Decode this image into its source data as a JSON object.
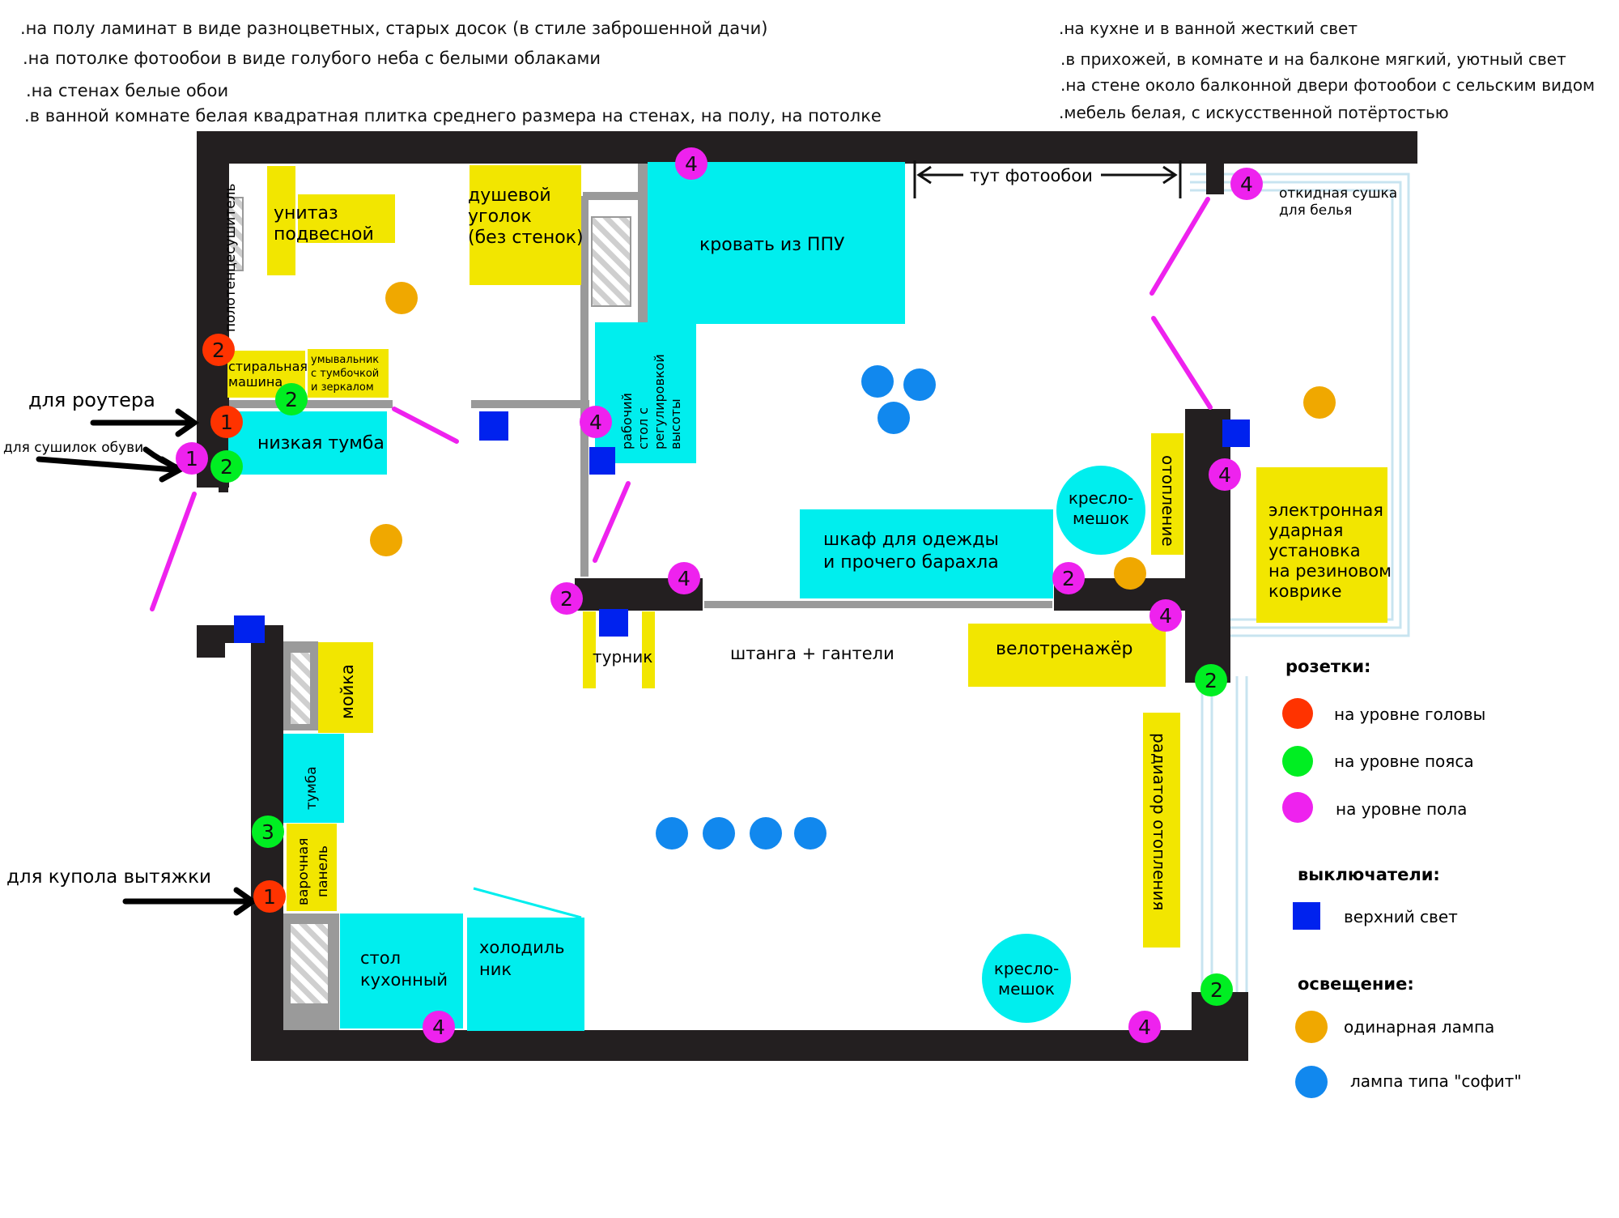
{
  "notes_left": [
    ".на полу ламинат в виде разноцветных, старых досок (в стиле заброшенной дачи)",
    ".на потолке фотообои в виде голубого неба с белыми облаками",
    ".на стенах белые обои",
    ".в ванной комнате белая квадратная  плитка среднего размера на стенах, на полу, на потолке"
  ],
  "notes_right": [
    ".на кухне и в ванной жесткий свет",
    ".в прихожей, в комнате и на балконе мягкий, уютный свет",
    ".на стене около балконной двери фотообои с сельским видом",
    ".мебель белая, с искусственной потёртостью"
  ],
  "colors": {
    "wall": "#231f20",
    "partition": "#9a9a9a",
    "yellow_furniture": "#f2e600",
    "cyan_furniture": "#00eeee",
    "socket_head": "#ff3300",
    "socket_waist": "#00ee22",
    "socket_floor": "#ee22ee",
    "switch": "#0022ee",
    "lamp_single": "#f0a800",
    "lamp_spot": "#1188ee",
    "door": "#ee22ee",
    "window": "#c8e4f0"
  },
  "items": {
    "polotencesushitel": "полотенцесушитель",
    "unitaz": [
      "унитаз",
      "подвесной"
    ],
    "dush": [
      "душевой",
      "уголок",
      "(без стенок)"
    ],
    "krovat": "кровать из ППУ",
    "tut_fotooboi": "тут фотообои",
    "sushka": [
      "откидная сушка",
      "для белья"
    ],
    "stiralnaya": [
      "стиральная",
      "машина"
    ],
    "umyvalnik": [
      "умывальник",
      "с тумбочкой",
      "и зеркалом"
    ],
    "nizkaya_tumba": "низкая тумба",
    "rabochiy_stol": [
      "рабочий",
      "стол с",
      "регулировкой",
      "высоты"
    ],
    "otoplenie": "отопление",
    "kreslo_1": [
      "кресло-",
      "мешок"
    ],
    "shkaf": [
      "шкаф для одежды",
      "и прочего барахла"
    ],
    "udarnaya": [
      "электронная",
      "ударная",
      "установка",
      "на резиновом",
      "коврике"
    ],
    "turnik": "турник",
    "shtanga": "штанга + гантели",
    "velotrenazher": "велотренажёр",
    "moyka": "мойка",
    "tumba": "тумба",
    "varochnaya": [
      "варочная",
      "панель"
    ],
    "radiator": "радиатор отопления",
    "stol_kuhonny": [
      "стол",
      "кухонный"
    ],
    "holodilnik": [
      "холодиль",
      "ник"
    ],
    "kreslo_2": [
      "кресло-",
      "мешок"
    ]
  },
  "annotations": {
    "router": "для роутера",
    "shoe_dryers": "для сушилок обуви",
    "hood": "для купола вытяжки"
  },
  "legend": {
    "sockets_title": "розетки:",
    "head": "на уровне головы",
    "waist": "на уровне пояса",
    "floor": "на уровне пола",
    "switches_title": "выключатели:",
    "top_light": "верхний свет",
    "lighting_title": "освещение:",
    "single_lamp": "одинарная лампа",
    "spot_lamp": "лампа типа \"софит\""
  },
  "sockets": [
    {
      "count": "2",
      "level": "head"
    },
    {
      "count": "1",
      "level": "head"
    },
    {
      "count": "1",
      "level": "head"
    },
    {
      "count": "2",
      "level": "waist"
    },
    {
      "count": "2",
      "level": "waist"
    },
    {
      "count": "3",
      "level": "waist"
    },
    {
      "count": "2",
      "level": "waist"
    },
    {
      "count": "2",
      "level": "waist"
    },
    {
      "count": "1",
      "level": "floor"
    },
    {
      "count": "4",
      "level": "floor"
    },
    {
      "count": "4",
      "level": "floor"
    },
    {
      "count": "4",
      "level": "floor"
    },
    {
      "count": "2",
      "level": "floor"
    },
    {
      "count": "4",
      "level": "floor"
    },
    {
      "count": "2",
      "level": "floor"
    },
    {
      "count": "4",
      "level": "floor"
    },
    {
      "count": "4",
      "level": "floor"
    },
    {
      "count": "4",
      "level": "floor"
    },
    {
      "count": "4",
      "level": "floor"
    }
  ]
}
